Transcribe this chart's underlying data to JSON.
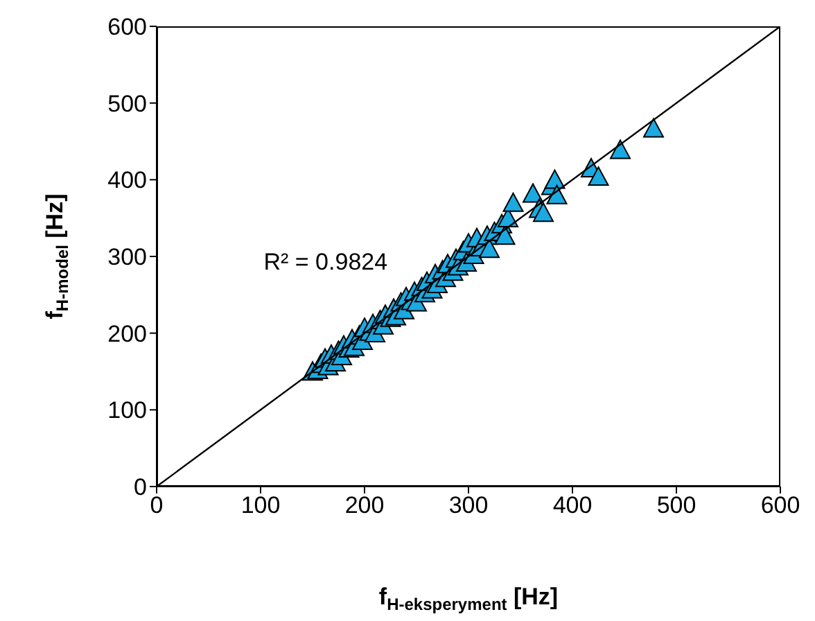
{
  "chart_data": {
    "type": "scatter",
    "xlabel": "f$_{H-eksperyment}$ [Hz]",
    "ylabel": "f$_{H-model}$ [Hz]",
    "xlim": [
      0,
      600
    ],
    "ylim": [
      0,
      600
    ],
    "xticks": [
      0,
      100,
      200,
      300,
      400,
      500,
      600
    ],
    "yticks": [
      0,
      100,
      200,
      300,
      400,
      500,
      600
    ],
    "marker": "triangle",
    "annotations": [
      "R² = 0.9824"
    ],
    "series": [
      {
        "color": "#1ba9e1",
        "x": [
          150,
          155,
          158,
          162,
          165,
          168,
          172,
          175,
          178,
          180,
          185,
          188,
          190,
          195,
          198,
          200,
          205,
          208,
          210,
          215,
          218,
          220,
          225,
          228,
          230,
          235,
          238,
          240,
          245,
          248,
          250,
          255,
          258,
          260,
          265,
          268,
          270,
          275,
          278,
          280,
          285,
          288,
          290,
          295,
          298,
          300,
          305,
          308,
          312,
          318,
          320,
          325,
          332,
          335,
          338,
          343,
          362,
          368,
          372,
          380,
          383,
          385,
          418,
          425,
          446,
          478
        ],
        "values": [
          148,
          150,
          158,
          165,
          155,
          170,
          160,
          175,
          168,
          182,
          178,
          190,
          180,
          195,
          188,
          205,
          200,
          210,
          198,
          215,
          208,
          222,
          218,
          230,
          220,
          238,
          228,
          245,
          240,
          252,
          238,
          258,
          250,
          265,
          255,
          275,
          262,
          280,
          270,
          288,
          278,
          295,
          285,
          305,
          290,
          315,
          300,
          322,
          310,
          325,
          308,
          330,
          340,
          325,
          348,
          368,
          380,
          360,
          355,
          390,
          398,
          378,
          413,
          402,
          437,
          465
        ]
      },
      {
        "type": "line",
        "color": "#000000",
        "marker": "none",
        "x": [
          0,
          600
        ],
        "values": [
          0,
          600
        ]
      }
    ]
  }
}
